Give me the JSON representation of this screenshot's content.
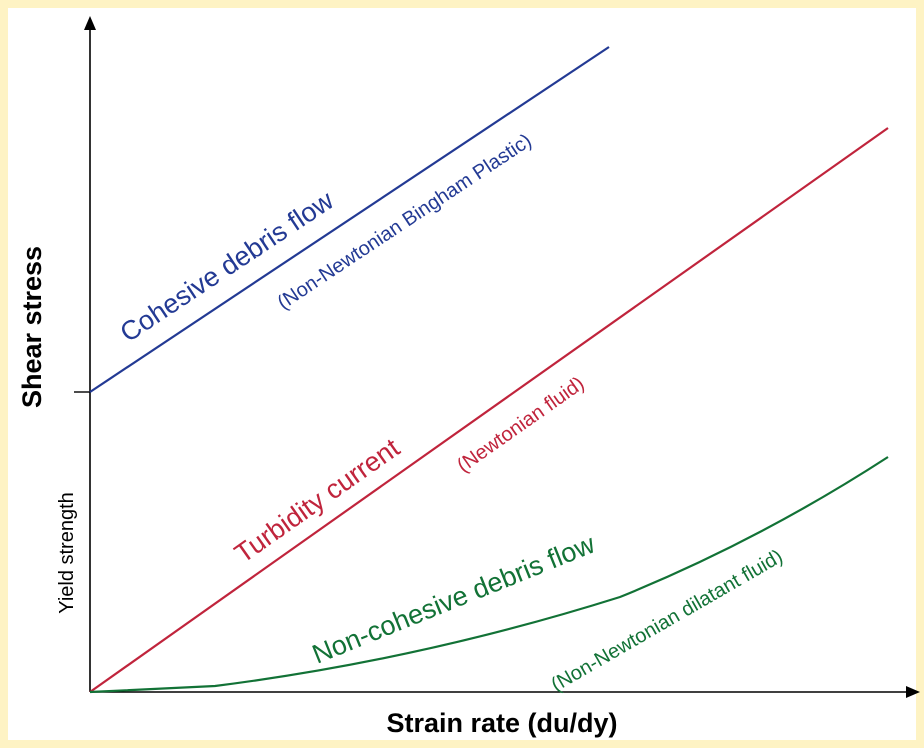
{
  "frame_color": "#fef3c4",
  "axes": {
    "x_label": "Strain rate (du/dy)",
    "y_label": "Shear stress",
    "yield_label": "Yield strength"
  },
  "curves": [
    {
      "id": "cohesive",
      "label": "Cohesive debris flow",
      "sublabel": "(Non-Newtonian Bingham Plastic)",
      "color": "#233a94"
    },
    {
      "id": "turbidity",
      "label": "Turbidity current",
      "sublabel": "(Newtonian fluid)",
      "color": "#c0243c"
    },
    {
      "id": "noncohesive",
      "label": "Non-cohesive debris flow",
      "sublabel": "(Non-Newtonian dilatant fluid)",
      "color": "#127236"
    }
  ]
}
